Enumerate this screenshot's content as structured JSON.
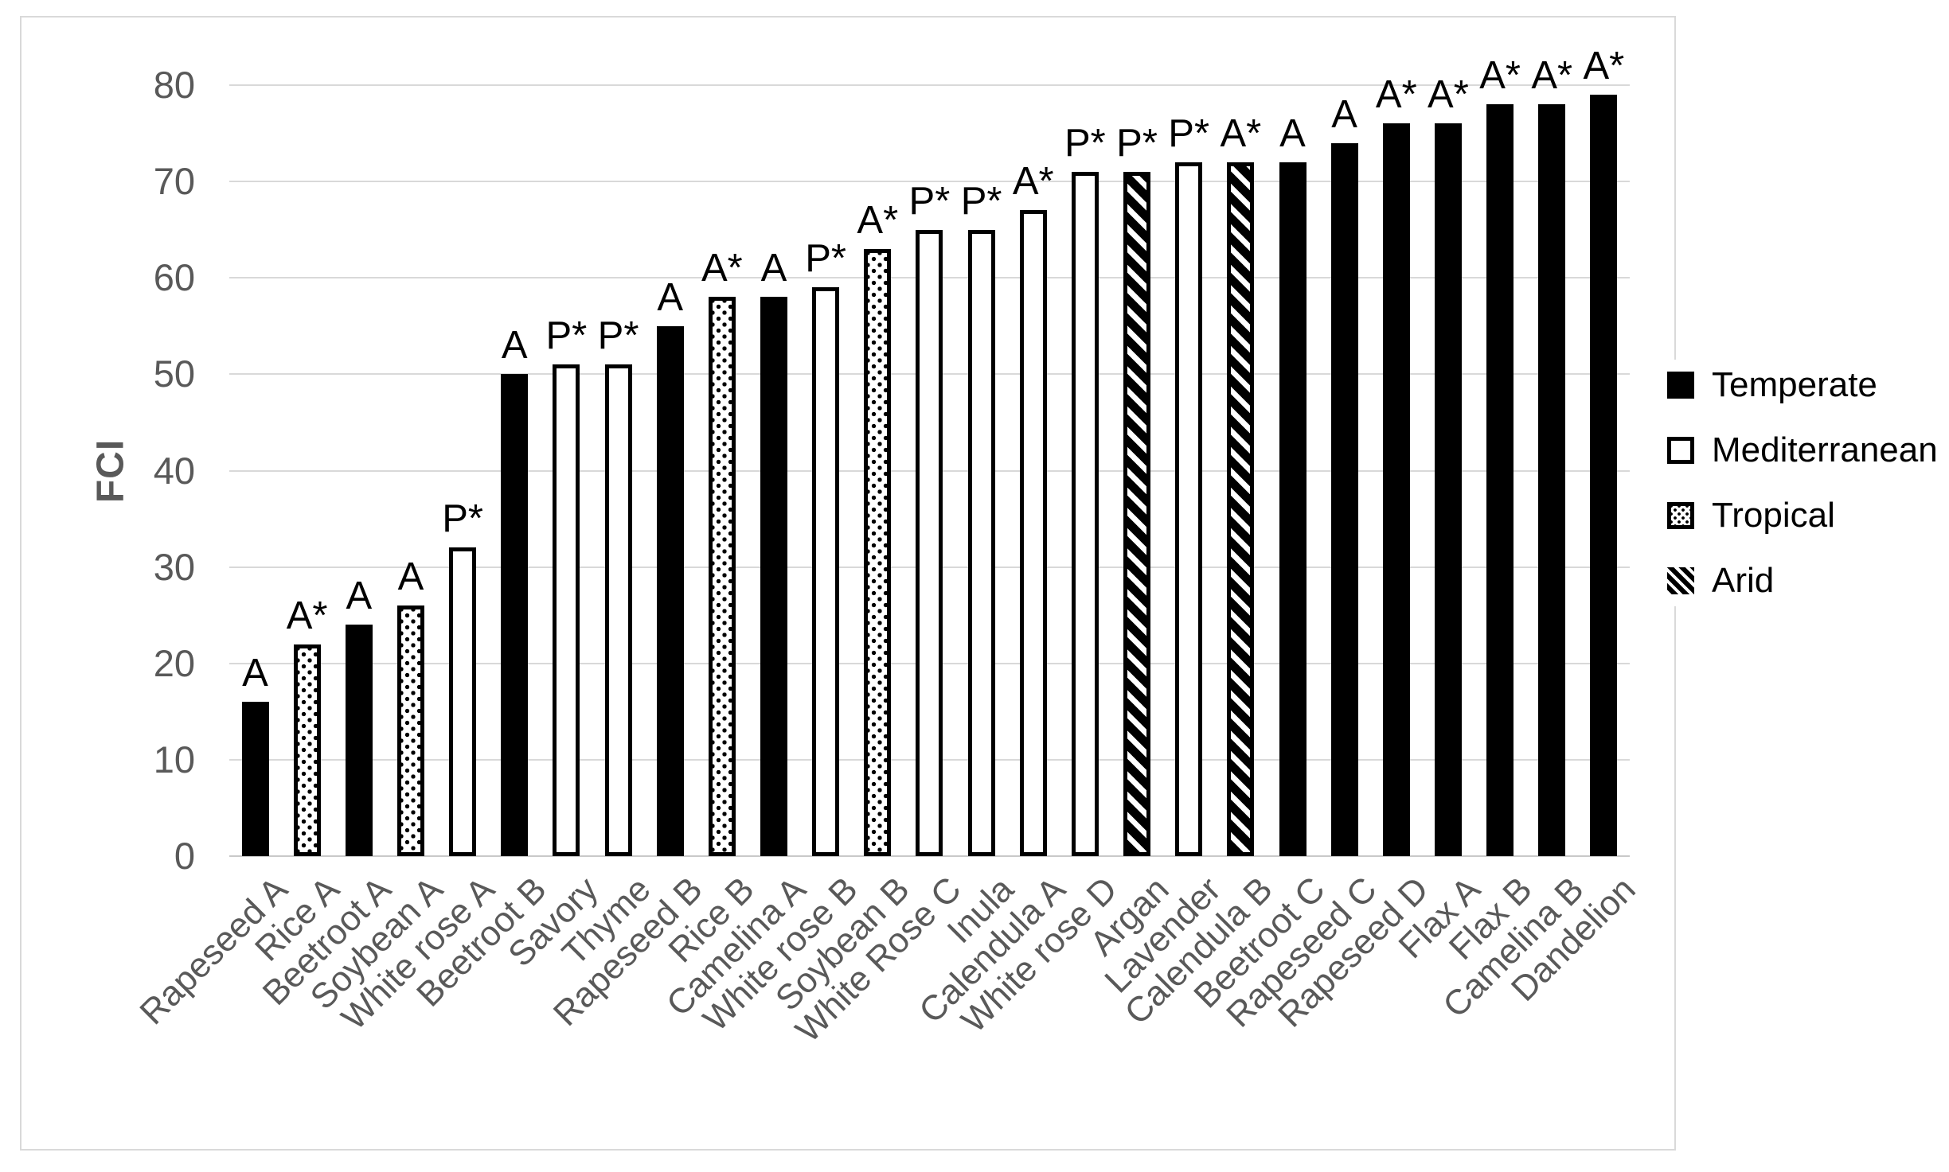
{
  "chart_data": {
    "type": "bar",
    "title": "",
    "xlabel": "",
    "ylabel": "FCI",
    "ylim": [
      0,
      80
    ],
    "yticks": [
      0,
      10,
      20,
      30,
      40,
      50,
      60,
      70,
      80
    ],
    "grid": true,
    "legend_position": "right",
    "legend": [
      {
        "label": "Temperate",
        "pattern": "solid"
      },
      {
        "label": "Mediterranean",
        "pattern": "outline"
      },
      {
        "label": "Tropical",
        "pattern": "dots"
      },
      {
        "label": "Arid",
        "pattern": "hatch"
      }
    ],
    "bars": [
      {
        "category": "Rapeseed A",
        "value": 16,
        "group": "Temperate",
        "annotation": "A"
      },
      {
        "category": "Rice A",
        "value": 22,
        "group": "Tropical",
        "annotation": "A*"
      },
      {
        "category": "Beetroot A",
        "value": 24,
        "group": "Temperate",
        "annotation": "A"
      },
      {
        "category": "Soybean A",
        "value": 26,
        "group": "Tropical",
        "annotation": "A"
      },
      {
        "category": "White rose A",
        "value": 32,
        "group": "Mediterranean",
        "annotation": "P*"
      },
      {
        "category": "Beetroot B",
        "value": 50,
        "group": "Temperate",
        "annotation": "A"
      },
      {
        "category": "Savory",
        "value": 51,
        "group": "Mediterranean",
        "annotation": "P*"
      },
      {
        "category": "Thyme",
        "value": 51,
        "group": "Mediterranean",
        "annotation": "P*"
      },
      {
        "category": "Rapeseed B",
        "value": 55,
        "group": "Temperate",
        "annotation": "A"
      },
      {
        "category": "Rice B",
        "value": 58,
        "group": "Tropical",
        "annotation": "A*"
      },
      {
        "category": "Camelina A",
        "value": 58,
        "group": "Temperate",
        "annotation": "A"
      },
      {
        "category": "White rose B",
        "value": 59,
        "group": "Mediterranean",
        "annotation": "P*"
      },
      {
        "category": "Soybean B",
        "value": 63,
        "group": "Tropical",
        "annotation": "A*"
      },
      {
        "category": "White Rose C",
        "value": 65,
        "group": "Mediterranean",
        "annotation": "P*"
      },
      {
        "category": "Inula",
        "value": 65,
        "group": "Mediterranean",
        "annotation": "P*"
      },
      {
        "category": "Calendula A",
        "value": 67,
        "group": "Mediterranean",
        "annotation": "A*"
      },
      {
        "category": "White rose D",
        "value": 71,
        "group": "Mediterranean",
        "annotation": "P*"
      },
      {
        "category": "Argan",
        "value": 71,
        "group": "Arid",
        "annotation": "P*"
      },
      {
        "category": "Lavender",
        "value": 72,
        "group": "Mediterranean",
        "annotation": "P*"
      },
      {
        "category": "Calendula B",
        "value": 72,
        "group": "Arid",
        "annotation": "A*"
      },
      {
        "category": "Beetroot C",
        "value": 72,
        "group": "Temperate",
        "annotation": "A"
      },
      {
        "category": "Rapeseed C",
        "value": 74,
        "group": "Temperate",
        "annotation": "A"
      },
      {
        "category": "Rapeseed D",
        "value": 76,
        "group": "Temperate",
        "annotation": "A*"
      },
      {
        "category": "Flax A",
        "value": 76,
        "group": "Temperate",
        "annotation": "A*"
      },
      {
        "category": "Flax B",
        "value": 78,
        "group": "Temperate",
        "annotation": "A*"
      },
      {
        "category": "Camelina B",
        "value": 78,
        "group": "Temperate",
        "annotation": "A*"
      },
      {
        "category": "Dandelion",
        "value": 79,
        "group": "Temperate",
        "annotation": "A*"
      }
    ],
    "colors": {
      "bar_fill": "#000000",
      "pattern_background": "#ffffff",
      "axis_text": "#595959",
      "annotation_text": "#000000",
      "gridline": "#d9d9d9"
    }
  }
}
